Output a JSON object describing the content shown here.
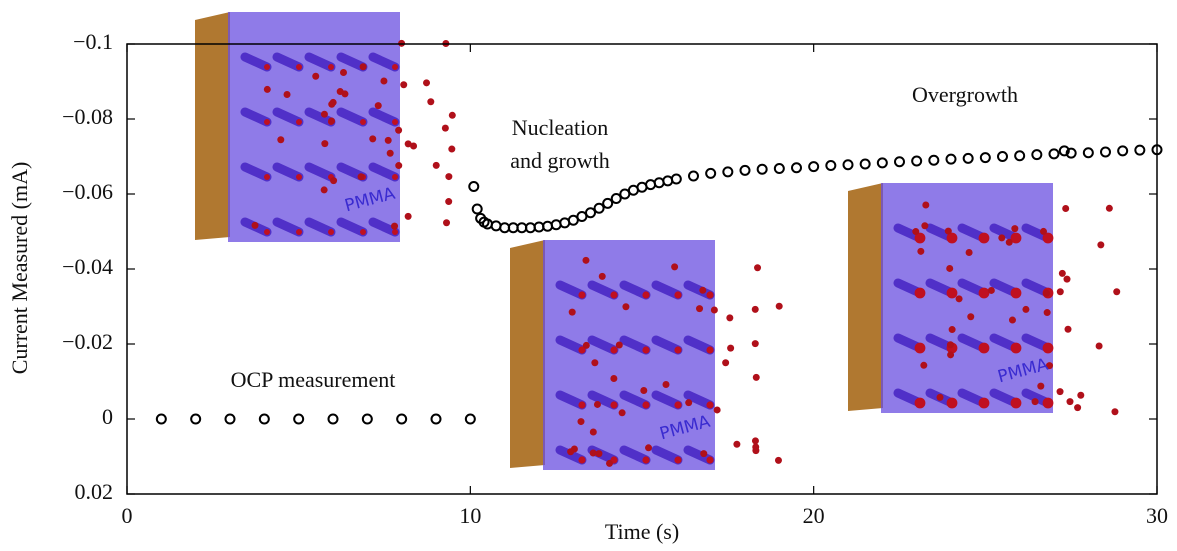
{
  "chart_data": {
    "type": "scatter",
    "xlabel": "Time (s)",
    "ylabel": "Current Measured (mA)",
    "xlim": [
      0,
      30
    ],
    "xticks": [
      0,
      10,
      20,
      30
    ],
    "ylim": [
      0.02,
      -0.1
    ],
    "yticks": [
      {
        "value": -0.1,
        "label": "−0.1"
      },
      {
        "value": -0.08,
        "label": "−0.08"
      },
      {
        "value": -0.06,
        "label": "−0.06"
      },
      {
        "value": -0.04,
        "label": "−0.04"
      },
      {
        "value": -0.02,
        "label": "−0.02"
      },
      0,
      0.02
    ],
    "series": [
      {
        "color": "#000000",
        "x": [
          1,
          2,
          3,
          4,
          5,
          6,
          7,
          8,
          9,
          10,
          10.1,
          10.2,
          10.3,
          10.4,
          10.5,
          10.75,
          11,
          11.25,
          11.5,
          11.75,
          12,
          12.25,
          12.5,
          12.75,
          13,
          13.25,
          13.5,
          13.75,
          14,
          14.25,
          14.5,
          14.75,
          15,
          15.25,
          15.5,
          15.75,
          16,
          16.5,
          17,
          17.5,
          18,
          18.5,
          19,
          19.5,
          20,
          20.5,
          21,
          21.5,
          22,
          22.5,
          23,
          23.5,
          24,
          24.5,
          25,
          25.5,
          26,
          26.5,
          27,
          27.3,
          27.5,
          28,
          28.5,
          29,
          29.5,
          30
        ],
        "values": [
          0,
          0,
          0,
          0,
          0,
          0,
          0,
          0,
          0,
          0,
          -0.062,
          -0.056,
          -0.0535,
          -0.0525,
          -0.052,
          -0.0515,
          -0.051,
          -0.051,
          -0.051,
          -0.051,
          -0.0512,
          -0.0514,
          -0.0518,
          -0.0523,
          -0.053,
          -0.054,
          -0.055,
          -0.0562,
          -0.0575,
          -0.0588,
          -0.06,
          -0.061,
          -0.0618,
          -0.0625,
          -0.063,
          -0.0635,
          -0.064,
          -0.0648,
          -0.0655,
          -0.0659,
          -0.0663,
          -0.0666,
          -0.0668,
          -0.067,
          -0.0673,
          -0.0676,
          -0.0678,
          -0.068,
          -0.0683,
          -0.0686,
          -0.0688,
          -0.069,
          -0.0693,
          -0.0695,
          -0.0697,
          -0.07,
          -0.0702,
          -0.0705,
          -0.0707,
          -0.0715,
          -0.0709,
          -0.071,
          -0.0712,
          -0.0715,
          -0.0717,
          -0.0718
        ]
      }
    ],
    "annotations": [
      "OCP measurement",
      "Nucleation",
      "and growth",
      "Overgrowth"
    ],
    "insets": [
      {
        "label": "PMMA"
      },
      {
        "label": "PMMA"
      },
      {
        "label": "PMMA"
      }
    ]
  }
}
